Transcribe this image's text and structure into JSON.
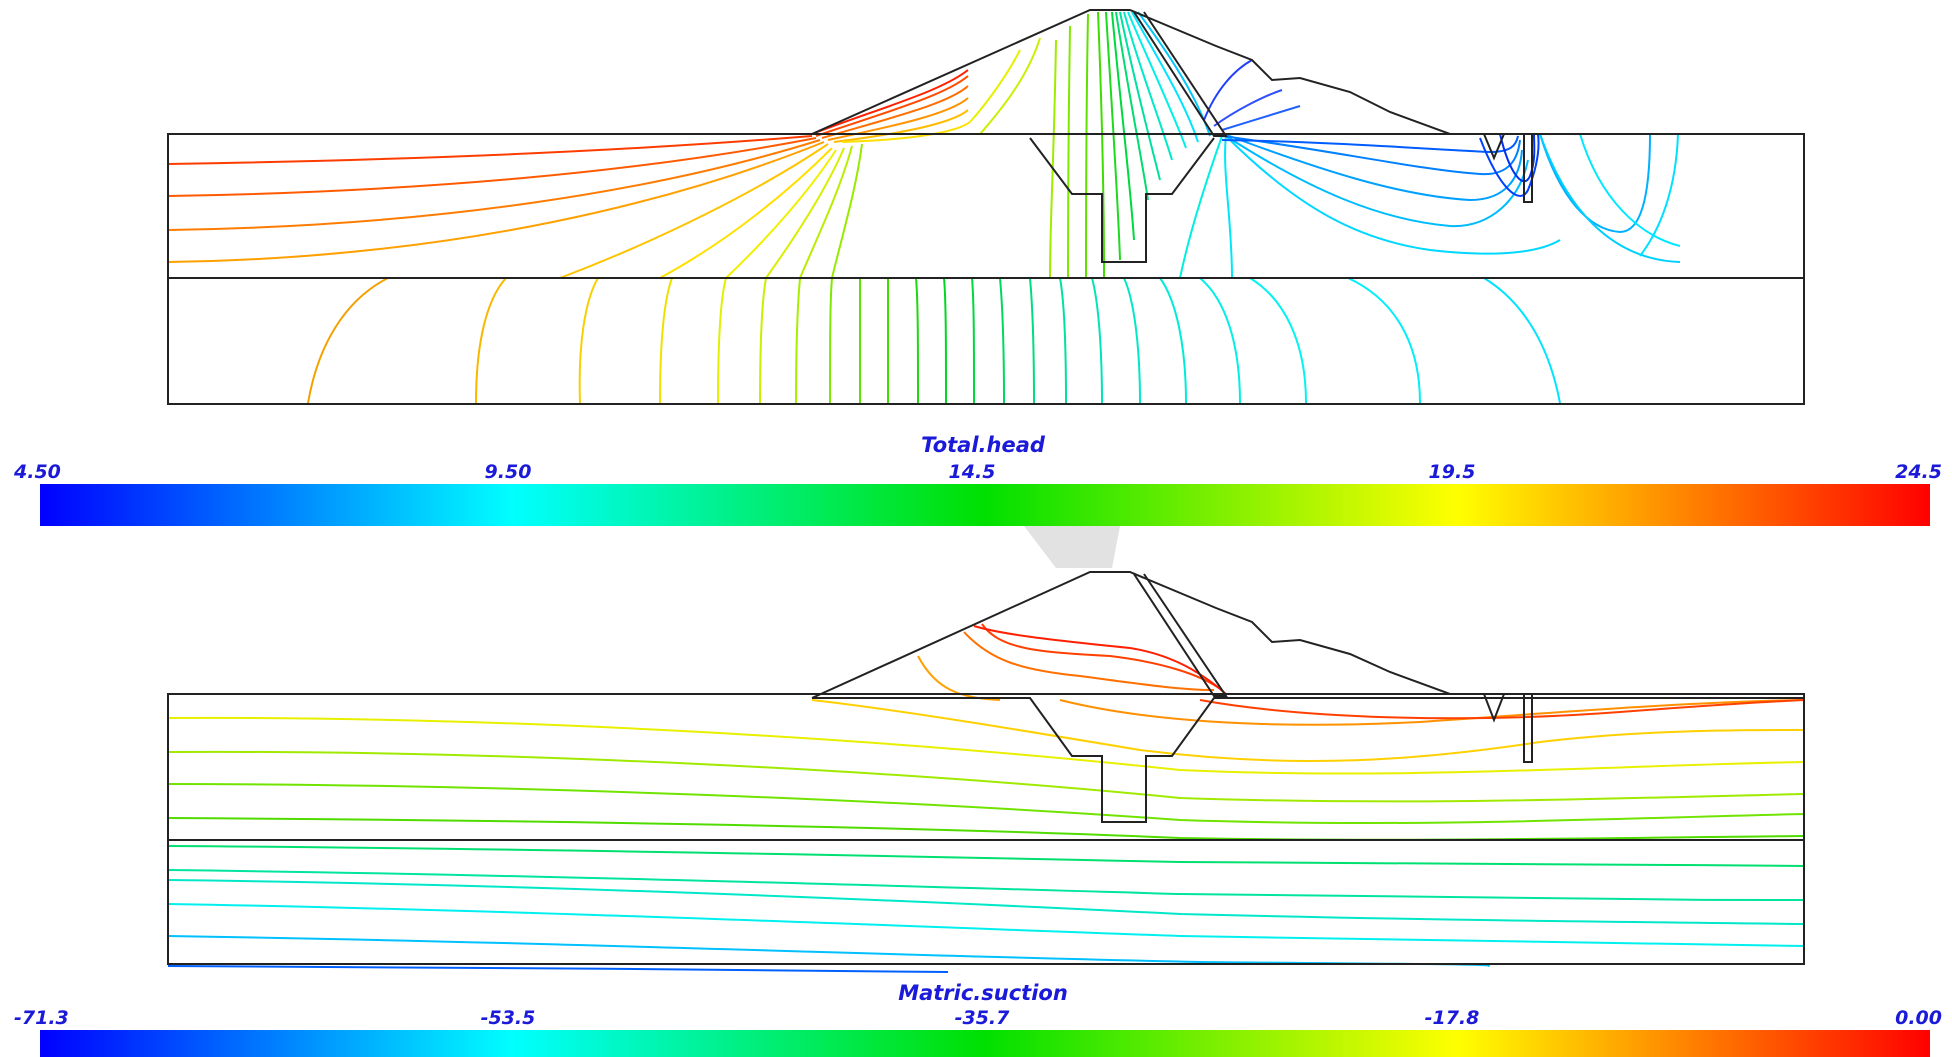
{
  "panels": [
    {
      "id": "total-head",
      "title": "Total.head",
      "colorbar": {
        "ticks": [
          "4.50",
          "9.50",
          "14.5",
          "19.5",
          "24.5"
        ],
        "min": 4.5,
        "max": 24.5,
        "colors": [
          "#0000ff",
          "#00ffff",
          "#00e000",
          "#ffff00",
          "#ff0000"
        ]
      }
    },
    {
      "id": "matric-suction",
      "title": "Matric.suction",
      "colorbar": {
        "ticks": [
          "-71.3",
          "-53.5",
          "-35.7",
          "-17.8",
          "0.00"
        ],
        "min": -71.3,
        "max": 0.0,
        "colors": [
          "#0000ff",
          "#00ffff",
          "#00e000",
          "#ffff00",
          "#ff0000"
        ]
      }
    }
  ]
}
